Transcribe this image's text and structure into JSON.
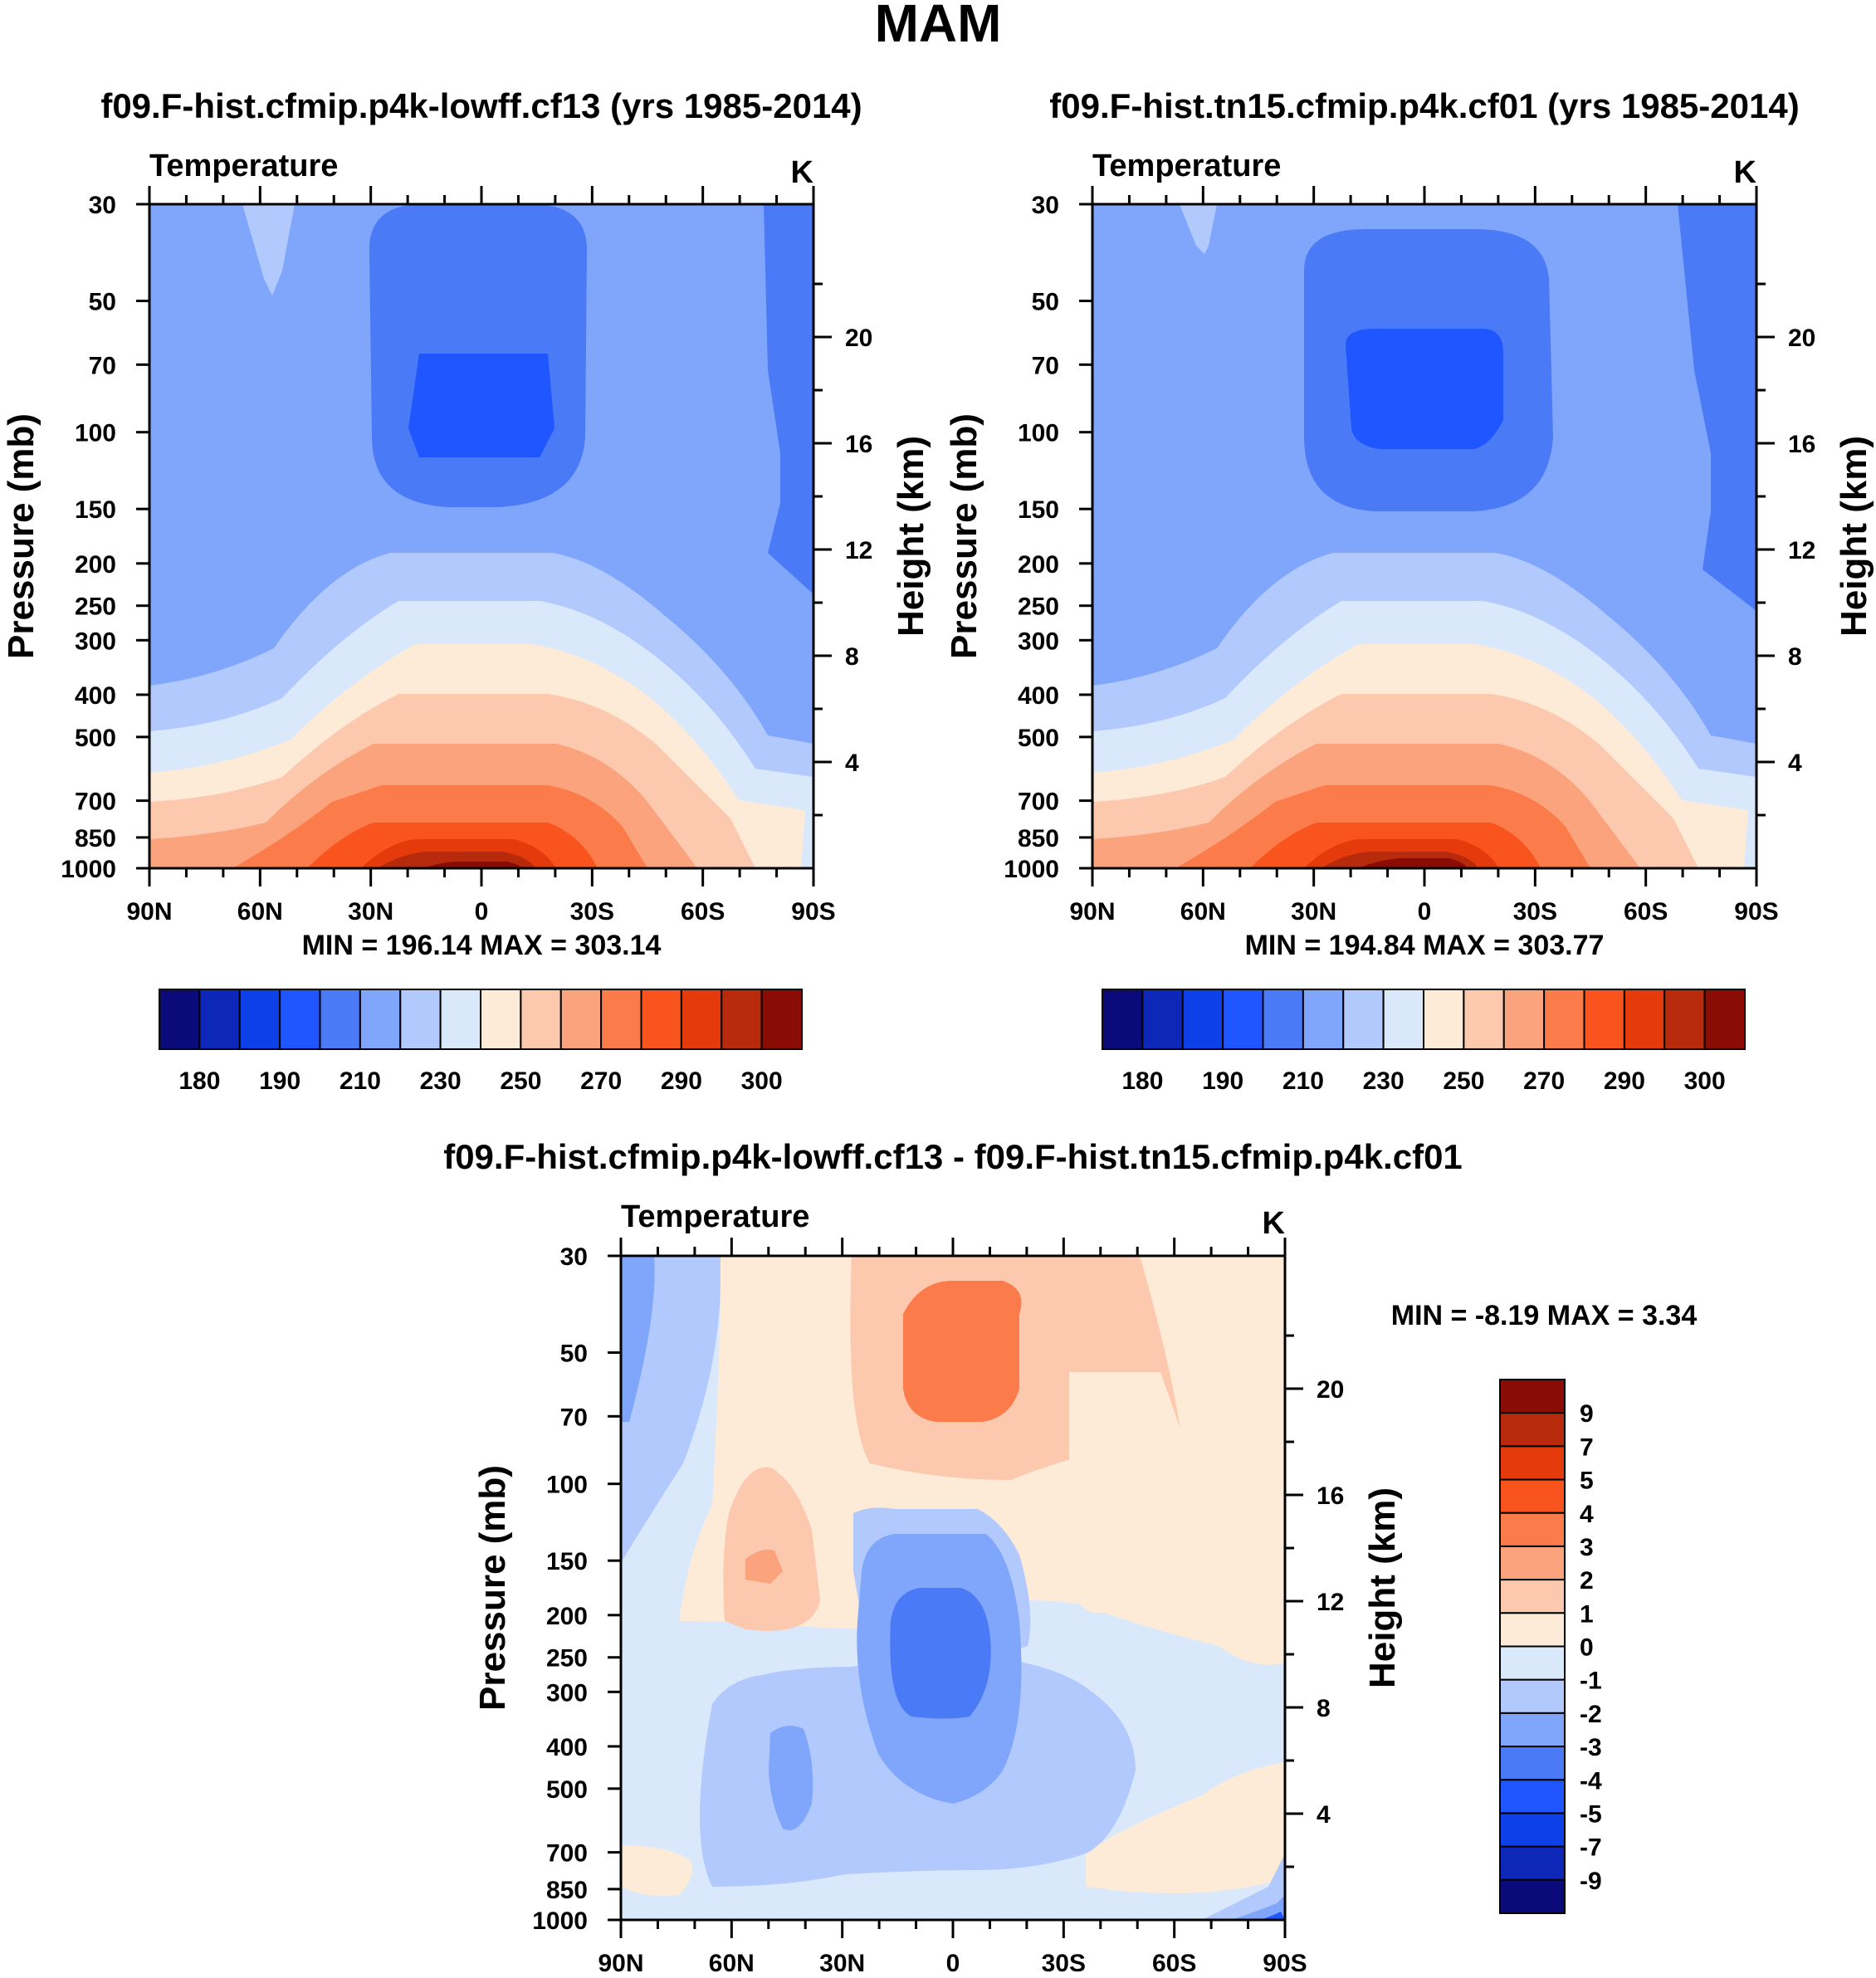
{
  "figure": {
    "title": "MAM"
  },
  "panel_labels": {
    "variable": "Temperature",
    "units": "K"
  },
  "chart_data": [
    {
      "type": "contour",
      "title": "f09.F-hist.cfmip.p4k-lowff.cf13 (yrs 1985-2014)",
      "variable": "Temperature",
      "units": "K",
      "ylabel": "Pressure (mb)",
      "y2label": "Height (km)",
      "x_ticks": [
        "90N",
        "60N",
        "30N",
        "0",
        "30S",
        "60S",
        "90S"
      ],
      "y_ticks": [
        "30",
        "50",
        "70",
        "100",
        "150",
        "200",
        "250",
        "300",
        "400",
        "500",
        "700",
        "850",
        "1000"
      ],
      "y2_ticks": [
        "20",
        "16",
        "12",
        "8",
        "4"
      ],
      "min_max": "MIN = 196.14  MAX = 303.14",
      "colorbar_labels": [
        "180",
        "190",
        "210",
        "230",
        "250",
        "270",
        "290",
        "300"
      ]
    },
    {
      "type": "contour",
      "title": "f09.F-hist.tn15.cfmip.p4k.cf01 (yrs 1985-2014)",
      "variable": "Temperature",
      "units": "K",
      "ylabel": "Pressure (mb)",
      "y2label": "Height (km)",
      "x_ticks": [
        "90N",
        "60N",
        "30N",
        "0",
        "30S",
        "60S",
        "90S"
      ],
      "y_ticks": [
        "30",
        "50",
        "70",
        "100",
        "150",
        "200",
        "250",
        "300",
        "400",
        "500",
        "700",
        "850",
        "1000"
      ],
      "y2_ticks": [
        "20",
        "16",
        "12",
        "8",
        "4"
      ],
      "min_max": "MIN = 194.84  MAX = 303.77",
      "colorbar_labels": [
        "180",
        "190",
        "210",
        "230",
        "250",
        "270",
        "290",
        "300"
      ]
    },
    {
      "type": "contour",
      "title": "f09.F-hist.cfmip.p4k-lowff.cf13 - f09.F-hist.tn15.cfmip.p4k.cf01",
      "variable": "Temperature",
      "units": "K",
      "ylabel": "Pressure (mb)",
      "y2label": "Height (km)",
      "x_ticks": [
        "90N",
        "60N",
        "30N",
        "0",
        "30S",
        "60S",
        "90S"
      ],
      "y_ticks": [
        "30",
        "50",
        "70",
        "100",
        "150",
        "200",
        "250",
        "300",
        "400",
        "500",
        "700",
        "850",
        "1000"
      ],
      "y2_ticks": [
        "20",
        "16",
        "12",
        "8",
        "4"
      ],
      "min_max": "MIN =  -8.19  MAX =   3.34",
      "colorbar_labels": [
        "9",
        "7",
        "5",
        "4",
        "3",
        "2",
        "1",
        "0",
        "-1",
        "-2",
        "-3",
        "-4",
        "-5",
        "-7",
        "-9"
      ]
    }
  ],
  "colors": {
    "abs_palette": [
      "#0a0a7a",
      "#0d27b8",
      "#0e40e8",
      "#1f56ff",
      "#4a7af5",
      "#80a6fb",
      "#b2c9fd",
      "#dae8fc",
      "#fdebd8",
      "#fcc9af",
      "#fba37c",
      "#fb7c4a",
      "#fa541e",
      "#e43a0c",
      "#b82a0c",
      "#8b0b05"
    ],
    "diff_palette": [
      "#8b0b05",
      "#b82a0c",
      "#e43a0c",
      "#fa541e",
      "#fb7c4a",
      "#fba37c",
      "#fcc9af",
      "#fdebd8",
      "#dae8fc",
      "#b2c9fd",
      "#80a6fb",
      "#4a7af5",
      "#1f56ff",
      "#0e40e8",
      "#0d27b8",
      "#0a0a7a"
    ]
  }
}
